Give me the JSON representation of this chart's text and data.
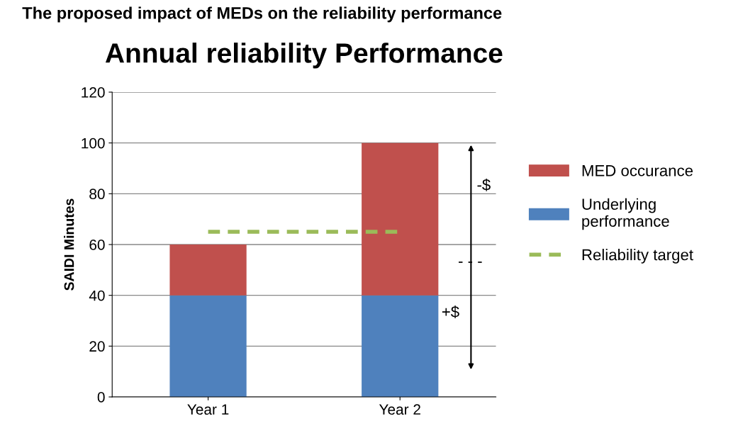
{
  "chart_data": {
    "type": "bar",
    "subtitle": "The proposed impact of MEDs on the reliability performance",
    "title": "Annual reliability Performance",
    "ylabel": "SAIDI Minutes",
    "categories": [
      "Year 1",
      "Year 2"
    ],
    "stacked": true,
    "series": [
      {
        "name": "Underlying performance",
        "color": "#4f81bd",
        "values": [
          40,
          40
        ]
      },
      {
        "name": "MED occurance",
        "color": "#c0504d",
        "values": [
          20,
          60
        ]
      },
      {
        "name": "Reliability target",
        "type": "line",
        "color": "#9bbb59",
        "line_style": "dashed",
        "values": [
          65,
          65
        ]
      }
    ],
    "ylim": [
      0,
      120
    ],
    "yticks": [
      0,
      20,
      40,
      60,
      80,
      100,
      120
    ],
    "grid": "y",
    "legend": "right",
    "annotations": [
      "-$",
      "- - -",
      "+$"
    ]
  }
}
